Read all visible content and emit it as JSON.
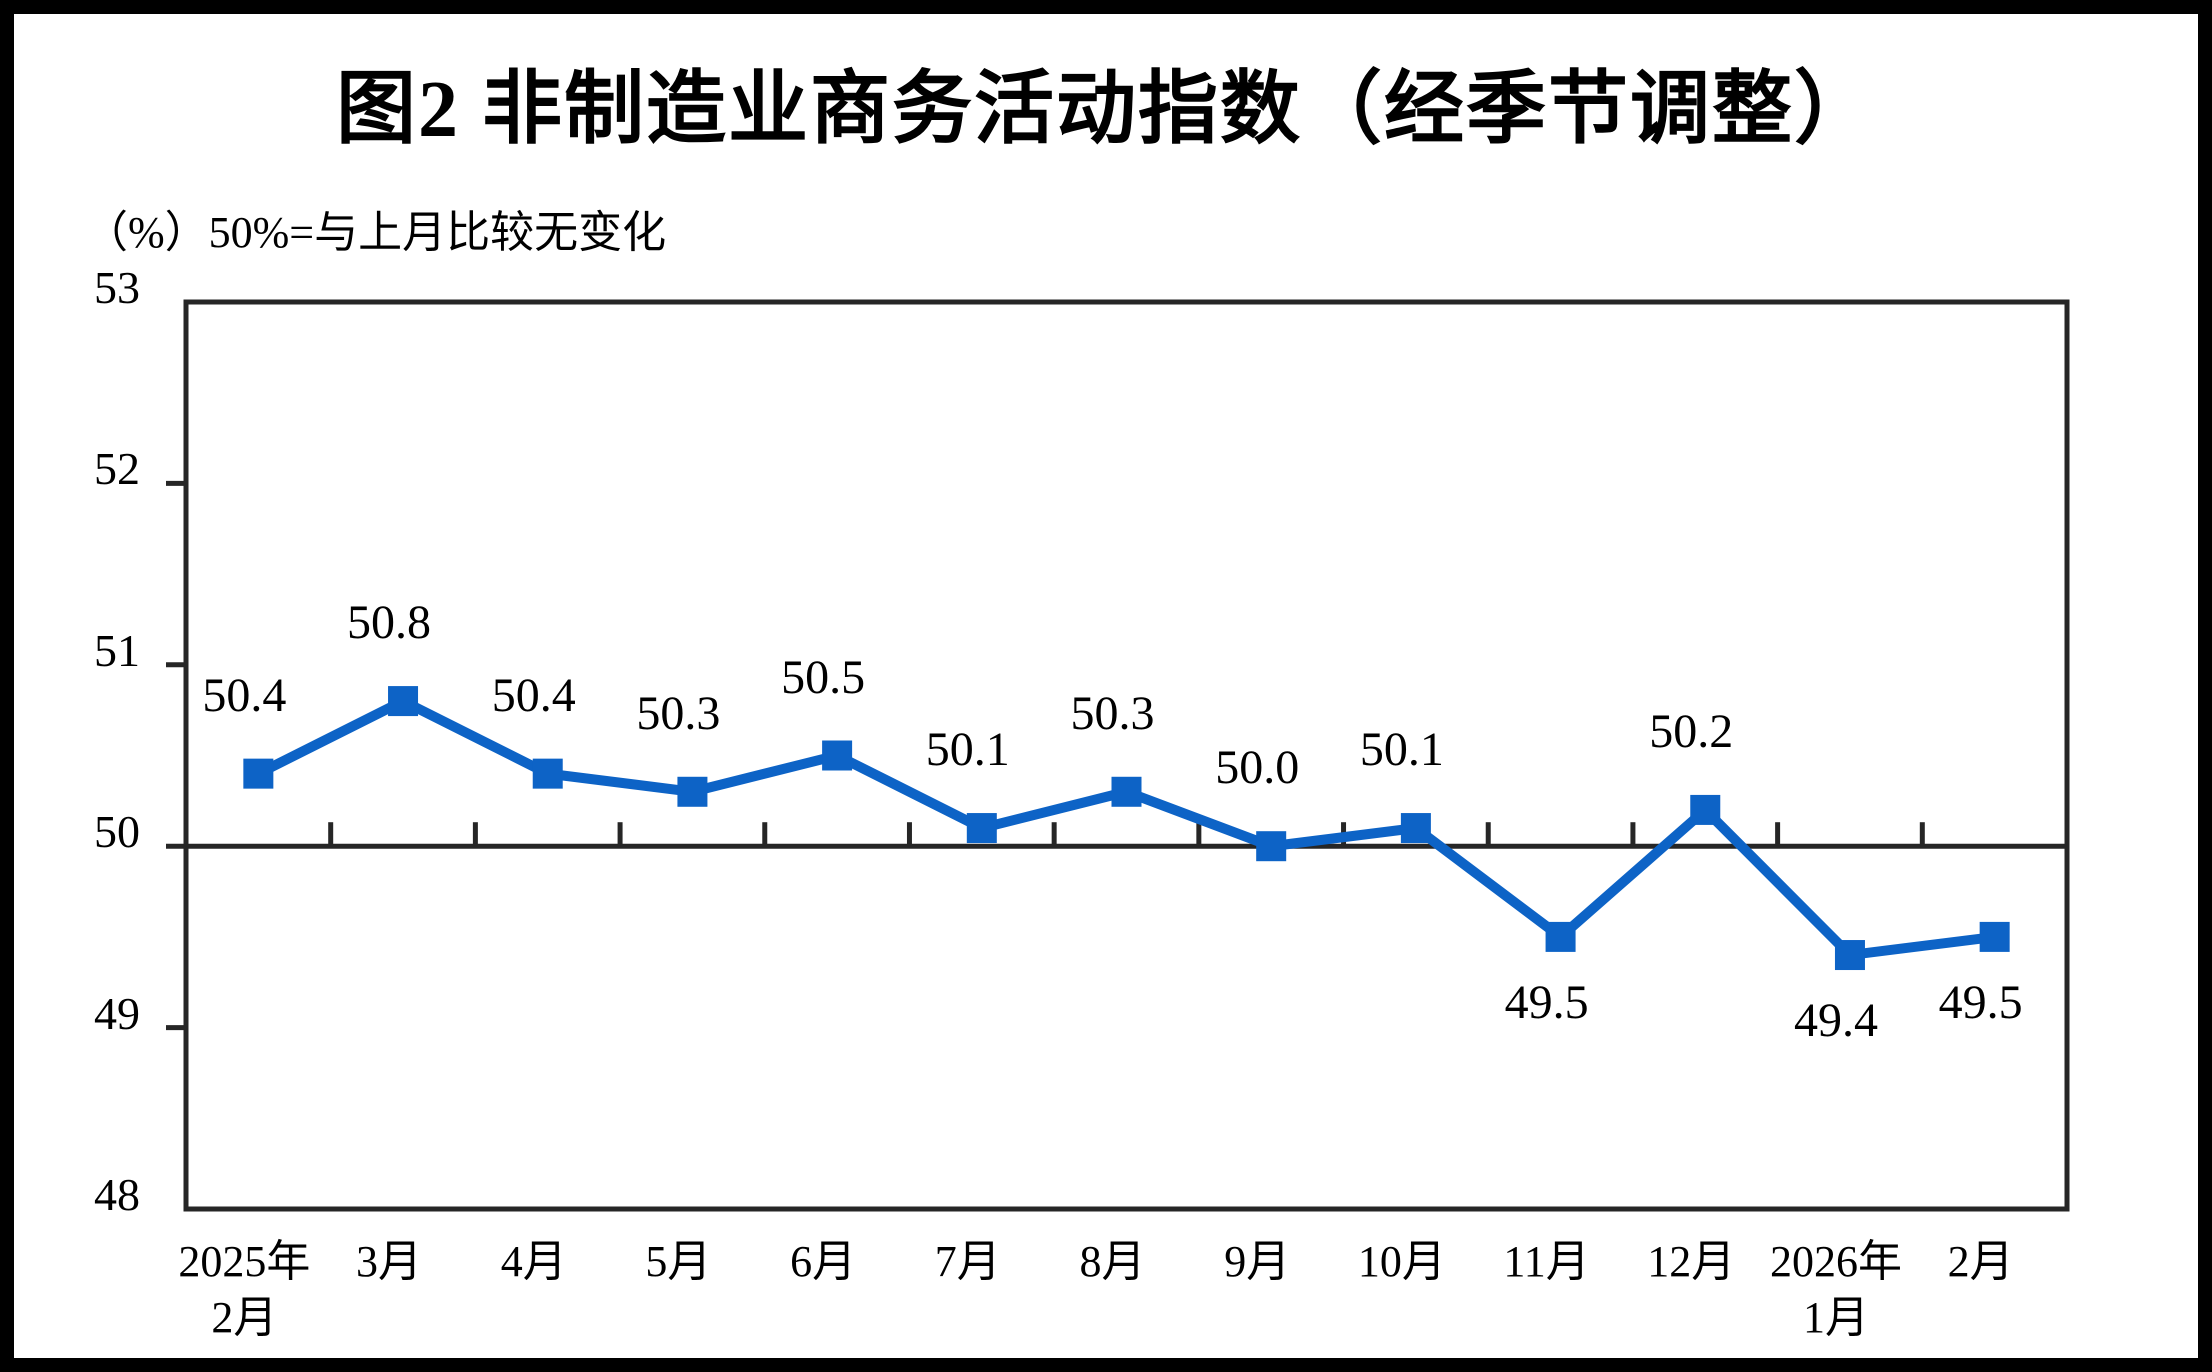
{
  "page": {
    "title": "图2  非制造业商务活动指数（经季节调整）",
    "unit_note": "（%）50%=与上月比较无变化"
  },
  "chart_data": {
    "type": "line",
    "title": "图2  非制造业商务活动指数（经季节调整）",
    "subtitle": "（%）50%=与上月比较无变化",
    "categories": [
      [
        "2025年",
        "2月"
      ],
      [
        "3月"
      ],
      [
        "4月"
      ],
      [
        "5月"
      ],
      [
        "6月"
      ],
      [
        "7月"
      ],
      [
        "8月"
      ],
      [
        "9月"
      ],
      [
        "10月"
      ],
      [
        "11月"
      ],
      [
        "12月"
      ],
      [
        "2026年",
        "1月"
      ],
      [
        "2月"
      ]
    ],
    "values": [
      50.4,
      50.8,
      50.4,
      50.3,
      50.5,
      50.1,
      50.3,
      50.0,
      50.1,
      49.5,
      50.2,
      49.4,
      49.5
    ],
    "data_labels": [
      "50.4",
      "50.8",
      "50.4",
      "50.3",
      "50.5",
      "50.1",
      "50.3",
      "50.0",
      "50.1",
      "49.5",
      "50.2",
      "49.4",
      "49.5"
    ],
    "label_placement": [
      "above",
      "above",
      "above",
      "above",
      "above",
      "above",
      "above",
      "above",
      "above",
      "below",
      "above",
      "below",
      "below"
    ],
    "ylim": [
      48,
      53
    ],
    "yticks": [
      48,
      49,
      50,
      51,
      52,
      53
    ],
    "reference_line_y": 50,
    "grid": "off",
    "legend": "none",
    "marker": "square",
    "colors": {
      "series": "#0D63C6",
      "axis": "#262626",
      "text": "#000000"
    }
  }
}
